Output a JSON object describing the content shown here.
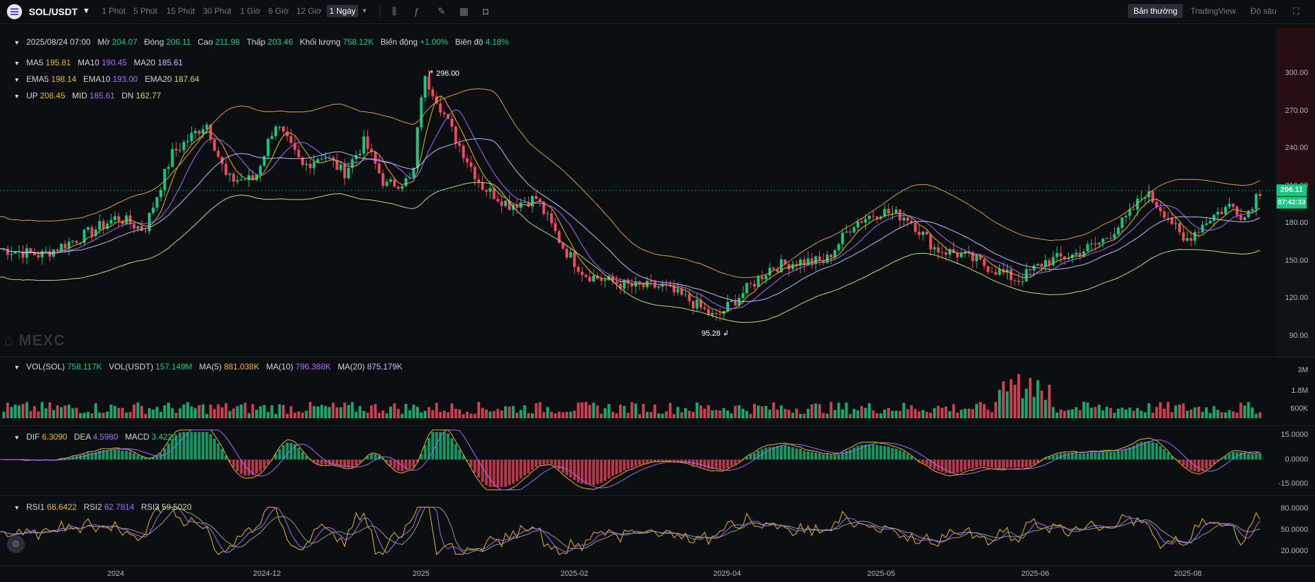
{
  "header": {
    "pair": "SOL/USDT",
    "timeframes": [
      "1 Phút",
      "5 Phút",
      "15 Phút",
      "30 Phút",
      "1 Giờ",
      "6 Giờ",
      "12 Giờ"
    ],
    "active_timeframe": "1 Ngày",
    "modes": [
      "Bản thường",
      "TradingView",
      "Độ sâu"
    ]
  },
  "ohlc": {
    "date": "2025/08/24 07:00",
    "open_label": "Mở",
    "open": "204.07",
    "close_label": "Đóng",
    "close": "206.11",
    "high_label": "Cao",
    "high": "211.98",
    "low_label": "Thấp",
    "low": "203.46",
    "vol_label": "Khối lượng",
    "vol": "758.12K",
    "change_label": "Biến động",
    "change": "+1.00%",
    "amp_label": "Biên độ",
    "amp": "4.18%"
  },
  "ma": {
    "ma5_label": "MA5",
    "ma5": "195.81",
    "ma10_label": "MA10",
    "ma10": "190.45",
    "ma20_label": "MA20",
    "ma20": "185.61"
  },
  "ema": {
    "ema5_label": "EMA5",
    "ema5": "198.14",
    "ema10_label": "EMA10",
    "ema10": "193.00",
    "ema20_label": "EMA20",
    "ema20": "187.64"
  },
  "boll": {
    "up_label": "UP",
    "up": "208.45",
    "mid_label": "MID",
    "mid": "185.61",
    "dn_label": "DN",
    "dn": "162.77"
  },
  "volume": {
    "sol_label": "VOL(SOL)",
    "sol": "758.117K",
    "usdt_label": "VOL(USDT)",
    "usdt": "157.149M",
    "ma5_label": "MA(5)",
    "ma5": "881.038K",
    "ma10_label": "MA(10)",
    "ma10": "796.388K",
    "ma20_label": "MA(20)",
    "ma20": "875.179K"
  },
  "macd": {
    "dif_label": "DIF",
    "dif": "6.3090",
    "dea_label": "DEA",
    "dea": "4.5980",
    "macd_label": "MACD",
    "macd": "3.4220"
  },
  "rsi": {
    "rsi1_label": "RSI1",
    "rsi1": "68.6422",
    "rsi2_label": "RSI2",
    "rsi2": "62.7814",
    "rsi3_label": "RSI3",
    "rsi3": "59.5020"
  },
  "price_axis": [
    "300.00",
    "270.00",
    "240.00",
    "210.00",
    "180.00",
    "150.00",
    "120.00",
    "90.00"
  ],
  "vol_axis": [
    "3M",
    "1.8M",
    "600K"
  ],
  "macd_axis": [
    "15.0000",
    "0.0000",
    "-15.0000"
  ],
  "rsi_axis": [
    "80.0000",
    "50.0000",
    "20.0000"
  ],
  "date_axis": [
    "2024",
    "2024-12",
    "2025",
    "2025-02",
    "2025-04",
    "2025-05",
    "2025-06",
    "2025-08"
  ],
  "last_price": "206.11",
  "countdown": "07:42:33",
  "high_marker": "296.00",
  "low_marker": "95.28",
  "watermark": "MEXC",
  "colors": {
    "up": "#0ecb81",
    "down": "#f6465d",
    "ma5": "#f0b90b",
    "ma10": "#a66cff",
    "ma20": "#c9b8ff",
    "boll": "#d8a03a"
  },
  "chart_data": {
    "type": "candlestick",
    "x_range": [
      "2024-10",
      "2025-08-24"
    ],
    "ylim": [
      85,
      310
    ],
    "key_points": [
      {
        "x": "2024-11",
        "close": 165
      },
      {
        "x": "2024-11-22",
        "close": 255
      },
      {
        "x": "2024-12",
        "close": 235
      },
      {
        "x": "2024-12-20",
        "close": 185
      },
      {
        "x": "2025-01-19",
        "close": 296
      },
      {
        "x": "2025-02",
        "close": 200
      },
      {
        "x": "2025-02-28",
        "close": 140
      },
      {
        "x": "2025-04-07",
        "close": 95.28
      },
      {
        "x": "2025-05-14",
        "close": 180
      },
      {
        "x": "2025-06-22",
        "close": 130
      },
      {
        "x": "2025-07-21",
        "close": 205
      },
      {
        "x": "2025-08-02",
        "close": 160
      },
      {
        "x": "2025-08-24",
        "close": 206.11
      }
    ]
  }
}
